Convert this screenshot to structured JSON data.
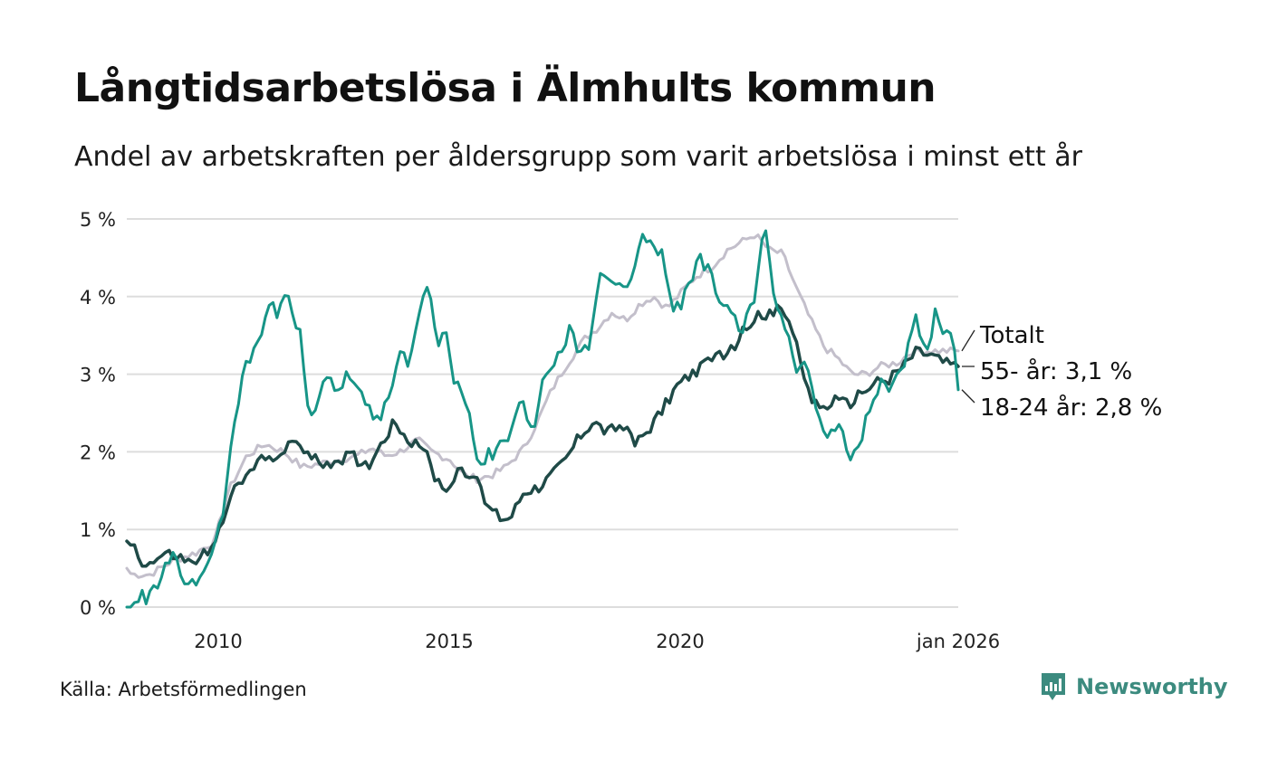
{
  "title": "Långtidsarbetslösa i Älmhults kommun",
  "subtitle": "Andel av arbetskraften per åldersgrupp som varit arbetslösa i minst ett år",
  "source": "Källa: Arbetsförmedlingen",
  "brand": {
    "name": "Newsworthy",
    "icon": "newsworthy-logo-icon"
  },
  "colors": {
    "totalt": "#c3bfcb",
    "age55": "#1f4a47",
    "age18_24": "#179587",
    "grid": "#dddddd",
    "text": "#111111",
    "brand": "#3c8b7f"
  },
  "chart_data": {
    "type": "line",
    "title": "Långtidsarbetslösa i Älmhults kommun",
    "xlabel": "",
    "ylabel": "",
    "x_start": 2008.0,
    "x_step_months": 1,
    "xlim": [
      2008.0,
      2026.0
    ],
    "ylim": [
      0,
      5
    ],
    "xticks": [
      {
        "value": 2010,
        "label": "2010"
      },
      {
        "value": 2015,
        "label": "2015"
      },
      {
        "value": 2020,
        "label": "2020"
      },
      {
        "value": 2026,
        "label": "jan 2026"
      }
    ],
    "yticks": [
      {
        "value": 0,
        "label": "0 %"
      },
      {
        "value": 1,
        "label": "1 %"
      },
      {
        "value": 2,
        "label": "2 %"
      },
      {
        "value": 3,
        "label": "3 %"
      },
      {
        "value": 4,
        "label": "4 %"
      },
      {
        "value": 5,
        "label": "5 %"
      }
    ],
    "grid": true,
    "series": [
      {
        "name": "Totalt",
        "label": "Totalt",
        "key": "totalt",
        "anchors": [
          [
            2008.0,
            0.5
          ],
          [
            2008.1,
            0.42
          ],
          [
            2008.5,
            0.42
          ],
          [
            2009.0,
            0.6
          ],
          [
            2009.5,
            0.7
          ],
          [
            2009.9,
            0.85
          ],
          [
            2010.2,
            1.5
          ],
          [
            2010.6,
            1.95
          ],
          [
            2011.0,
            2.1
          ],
          [
            2011.4,
            2.0
          ],
          [
            2011.8,
            1.8
          ],
          [
            2012.2,
            1.85
          ],
          [
            2012.6,
            1.9
          ],
          [
            2013.0,
            1.95
          ],
          [
            2013.3,
            2.05
          ],
          [
            2013.6,
            1.95
          ],
          [
            2013.9,
            2.0
          ],
          [
            2014.3,
            2.15
          ],
          [
            2014.6,
            2.0
          ],
          [
            2015.0,
            1.9
          ],
          [
            2015.3,
            1.7
          ],
          [
            2015.6,
            1.65
          ],
          [
            2015.9,
            1.7
          ],
          [
            2016.2,
            1.8
          ],
          [
            2016.6,
            2.05
          ],
          [
            2016.9,
            2.4
          ],
          [
            2017.2,
            2.8
          ],
          [
            2017.5,
            3.1
          ],
          [
            2017.9,
            3.45
          ],
          [
            2018.2,
            3.6
          ],
          [
            2018.5,
            3.8
          ],
          [
            2018.8,
            3.7
          ],
          [
            2019.1,
            3.9
          ],
          [
            2019.4,
            4.0
          ],
          [
            2019.7,
            3.85
          ],
          [
            2020.0,
            4.05
          ],
          [
            2020.3,
            4.25
          ],
          [
            2020.7,
            4.4
          ],
          [
            2021.0,
            4.6
          ],
          [
            2021.3,
            4.7
          ],
          [
            2021.6,
            4.8
          ],
          [
            2021.9,
            4.6
          ],
          [
            2022.2,
            4.55
          ],
          [
            2022.5,
            4.1
          ],
          [
            2022.8,
            3.7
          ],
          [
            2023.1,
            3.35
          ],
          [
            2023.4,
            3.2
          ],
          [
            2023.7,
            3.0
          ],
          [
            2024.0,
            3.0
          ],
          [
            2024.3,
            3.1
          ],
          [
            2024.7,
            3.15
          ],
          [
            2025.0,
            3.3
          ],
          [
            2025.4,
            3.3
          ],
          [
            2025.8,
            3.3
          ],
          [
            2026.0,
            3.3
          ]
        ],
        "noise": 0.05,
        "width": 3
      },
      {
        "name": "55- år",
        "label": "55- år: 3,1 %",
        "key": "age55",
        "anchors": [
          [
            2008.0,
            0.85
          ],
          [
            2008.15,
            0.8
          ],
          [
            2008.3,
            0.6
          ],
          [
            2008.5,
            0.55
          ],
          [
            2008.8,
            0.68
          ],
          [
            2009.1,
            0.65
          ],
          [
            2009.4,
            0.55
          ],
          [
            2009.7,
            0.7
          ],
          [
            2009.9,
            0.75
          ],
          [
            2010.2,
            1.4
          ],
          [
            2010.5,
            1.6
          ],
          [
            2010.8,
            1.85
          ],
          [
            2011.1,
            1.95
          ],
          [
            2011.4,
            2.0
          ],
          [
            2011.7,
            2.15
          ],
          [
            2012.0,
            1.9
          ],
          [
            2012.3,
            1.85
          ],
          [
            2012.6,
            1.9
          ],
          [
            2012.9,
            1.95
          ],
          [
            2013.2,
            1.8
          ],
          [
            2013.5,
            2.1
          ],
          [
            2013.8,
            2.4
          ],
          [
            2014.1,
            2.15
          ],
          [
            2014.4,
            2.1
          ],
          [
            2014.6,
            1.75
          ],
          [
            2014.8,
            1.55
          ],
          [
            2015.0,
            1.55
          ],
          [
            2015.2,
            1.8
          ],
          [
            2015.5,
            1.7
          ],
          [
            2015.8,
            1.3
          ],
          [
            2016.1,
            1.15
          ],
          [
            2016.3,
            1.15
          ],
          [
            2016.6,
            1.5
          ],
          [
            2016.9,
            1.55
          ],
          [
            2017.2,
            1.7
          ],
          [
            2017.5,
            1.9
          ],
          [
            2017.8,
            2.2
          ],
          [
            2018.1,
            2.4
          ],
          [
            2018.4,
            2.25
          ],
          [
            2018.7,
            2.35
          ],
          [
            2019.0,
            2.1
          ],
          [
            2019.3,
            2.3
          ],
          [
            2019.6,
            2.55
          ],
          [
            2019.9,
            2.85
          ],
          [
            2020.2,
            3.0
          ],
          [
            2020.5,
            3.1
          ],
          [
            2020.8,
            3.25
          ],
          [
            2021.1,
            3.3
          ],
          [
            2021.4,
            3.6
          ],
          [
            2021.7,
            3.8
          ],
          [
            2022.0,
            3.75
          ],
          [
            2022.2,
            3.9
          ],
          [
            2022.4,
            3.6
          ],
          [
            2022.6,
            3.1
          ],
          [
            2022.8,
            2.7
          ],
          [
            2023.0,
            2.55
          ],
          [
            2023.3,
            2.65
          ],
          [
            2023.6,
            2.6
          ],
          [
            2023.9,
            2.75
          ],
          [
            2024.2,
            2.9
          ],
          [
            2024.5,
            2.95
          ],
          [
            2024.8,
            3.1
          ],
          [
            2025.1,
            3.3
          ],
          [
            2025.4,
            3.25
          ],
          [
            2025.7,
            3.15
          ],
          [
            2026.0,
            3.1
          ]
        ],
        "noise": 0.08,
        "width": 3.5
      },
      {
        "name": "18-24 år",
        "label": "18-24 år: 2,8 %",
        "key": "age18_24",
        "anchors": [
          [
            2008.0,
            0.0
          ],
          [
            2008.15,
            0.0
          ],
          [
            2008.3,
            0.12
          ],
          [
            2008.5,
            0.15
          ],
          [
            2008.8,
            0.45
          ],
          [
            2009.0,
            0.65
          ],
          [
            2009.2,
            0.35
          ],
          [
            2009.5,
            0.32
          ],
          [
            2009.7,
            0.55
          ],
          [
            2009.9,
            0.75
          ],
          [
            2010.1,
            1.3
          ],
          [
            2010.3,
            2.2
          ],
          [
            2010.5,
            3.0
          ],
          [
            2010.7,
            3.3
          ],
          [
            2010.9,
            3.5
          ],
          [
            2011.1,
            3.95
          ],
          [
            2011.3,
            3.75
          ],
          [
            2011.45,
            4.1
          ],
          [
            2011.6,
            3.75
          ],
          [
            2011.75,
            3.6
          ],
          [
            2011.95,
            2.3
          ],
          [
            2012.1,
            2.6
          ],
          [
            2012.3,
            3.0
          ],
          [
            2012.5,
            2.75
          ],
          [
            2012.7,
            2.95
          ],
          [
            2012.9,
            3.0
          ],
          [
            2013.1,
            2.7
          ],
          [
            2013.3,
            2.5
          ],
          [
            2013.5,
            2.45
          ],
          [
            2013.7,
            2.7
          ],
          [
            2013.9,
            3.3
          ],
          [
            2014.1,
            3.15
          ],
          [
            2014.3,
            3.7
          ],
          [
            2014.5,
            4.2
          ],
          [
            2014.7,
            3.45
          ],
          [
            2014.9,
            3.5
          ],
          [
            2015.1,
            2.85
          ],
          [
            2015.3,
            2.75
          ],
          [
            2015.45,
            2.3
          ],
          [
            2015.6,
            1.75
          ],
          [
            2015.8,
            2.0
          ],
          [
            2016.0,
            2.0
          ],
          [
            2016.2,
            2.1
          ],
          [
            2016.4,
            2.5
          ],
          [
            2016.6,
            2.6
          ],
          [
            2016.8,
            2.3
          ],
          [
            2017.0,
            2.9
          ],
          [
            2017.2,
            3.05
          ],
          [
            2017.4,
            3.3
          ],
          [
            2017.6,
            3.55
          ],
          [
            2017.8,
            3.25
          ],
          [
            2018.0,
            3.4
          ],
          [
            2018.2,
            4.2
          ],
          [
            2018.4,
            4.2
          ],
          [
            2018.6,
            4.2
          ],
          [
            2018.8,
            4.0
          ],
          [
            2019.0,
            4.35
          ],
          [
            2019.2,
            4.8
          ],
          [
            2019.4,
            4.55
          ],
          [
            2019.6,
            4.65
          ],
          [
            2019.8,
            3.8
          ],
          [
            2020.0,
            3.9
          ],
          [
            2020.2,
            4.2
          ],
          [
            2020.4,
            4.5
          ],
          [
            2020.6,
            4.35
          ],
          [
            2020.8,
            4.0
          ],
          [
            2021.0,
            3.95
          ],
          [
            2021.2,
            3.6
          ],
          [
            2021.4,
            3.65
          ],
          [
            2021.6,
            4.0
          ],
          [
            2021.8,
            5.0
          ],
          [
            2021.95,
            4.2
          ],
          [
            2022.1,
            3.8
          ],
          [
            2022.3,
            3.6
          ],
          [
            2022.5,
            3.1
          ],
          [
            2022.7,
            3.1
          ],
          [
            2022.9,
            2.7
          ],
          [
            2023.1,
            2.2
          ],
          [
            2023.3,
            2.3
          ],
          [
            2023.5,
            2.25
          ],
          [
            2023.7,
            1.85
          ],
          [
            2023.9,
            2.2
          ],
          [
            2024.1,
            2.55
          ],
          [
            2024.3,
            2.9
          ],
          [
            2024.5,
            2.7
          ],
          [
            2024.7,
            2.95
          ],
          [
            2024.9,
            3.3
          ],
          [
            2025.1,
            3.75
          ],
          [
            2025.3,
            3.25
          ],
          [
            2025.5,
            3.8
          ],
          [
            2025.7,
            3.55
          ],
          [
            2025.85,
            3.6
          ],
          [
            2026.0,
            2.8
          ]
        ],
        "noise": 0.1,
        "width": 3
      }
    ],
    "legend": "right-end labels"
  }
}
